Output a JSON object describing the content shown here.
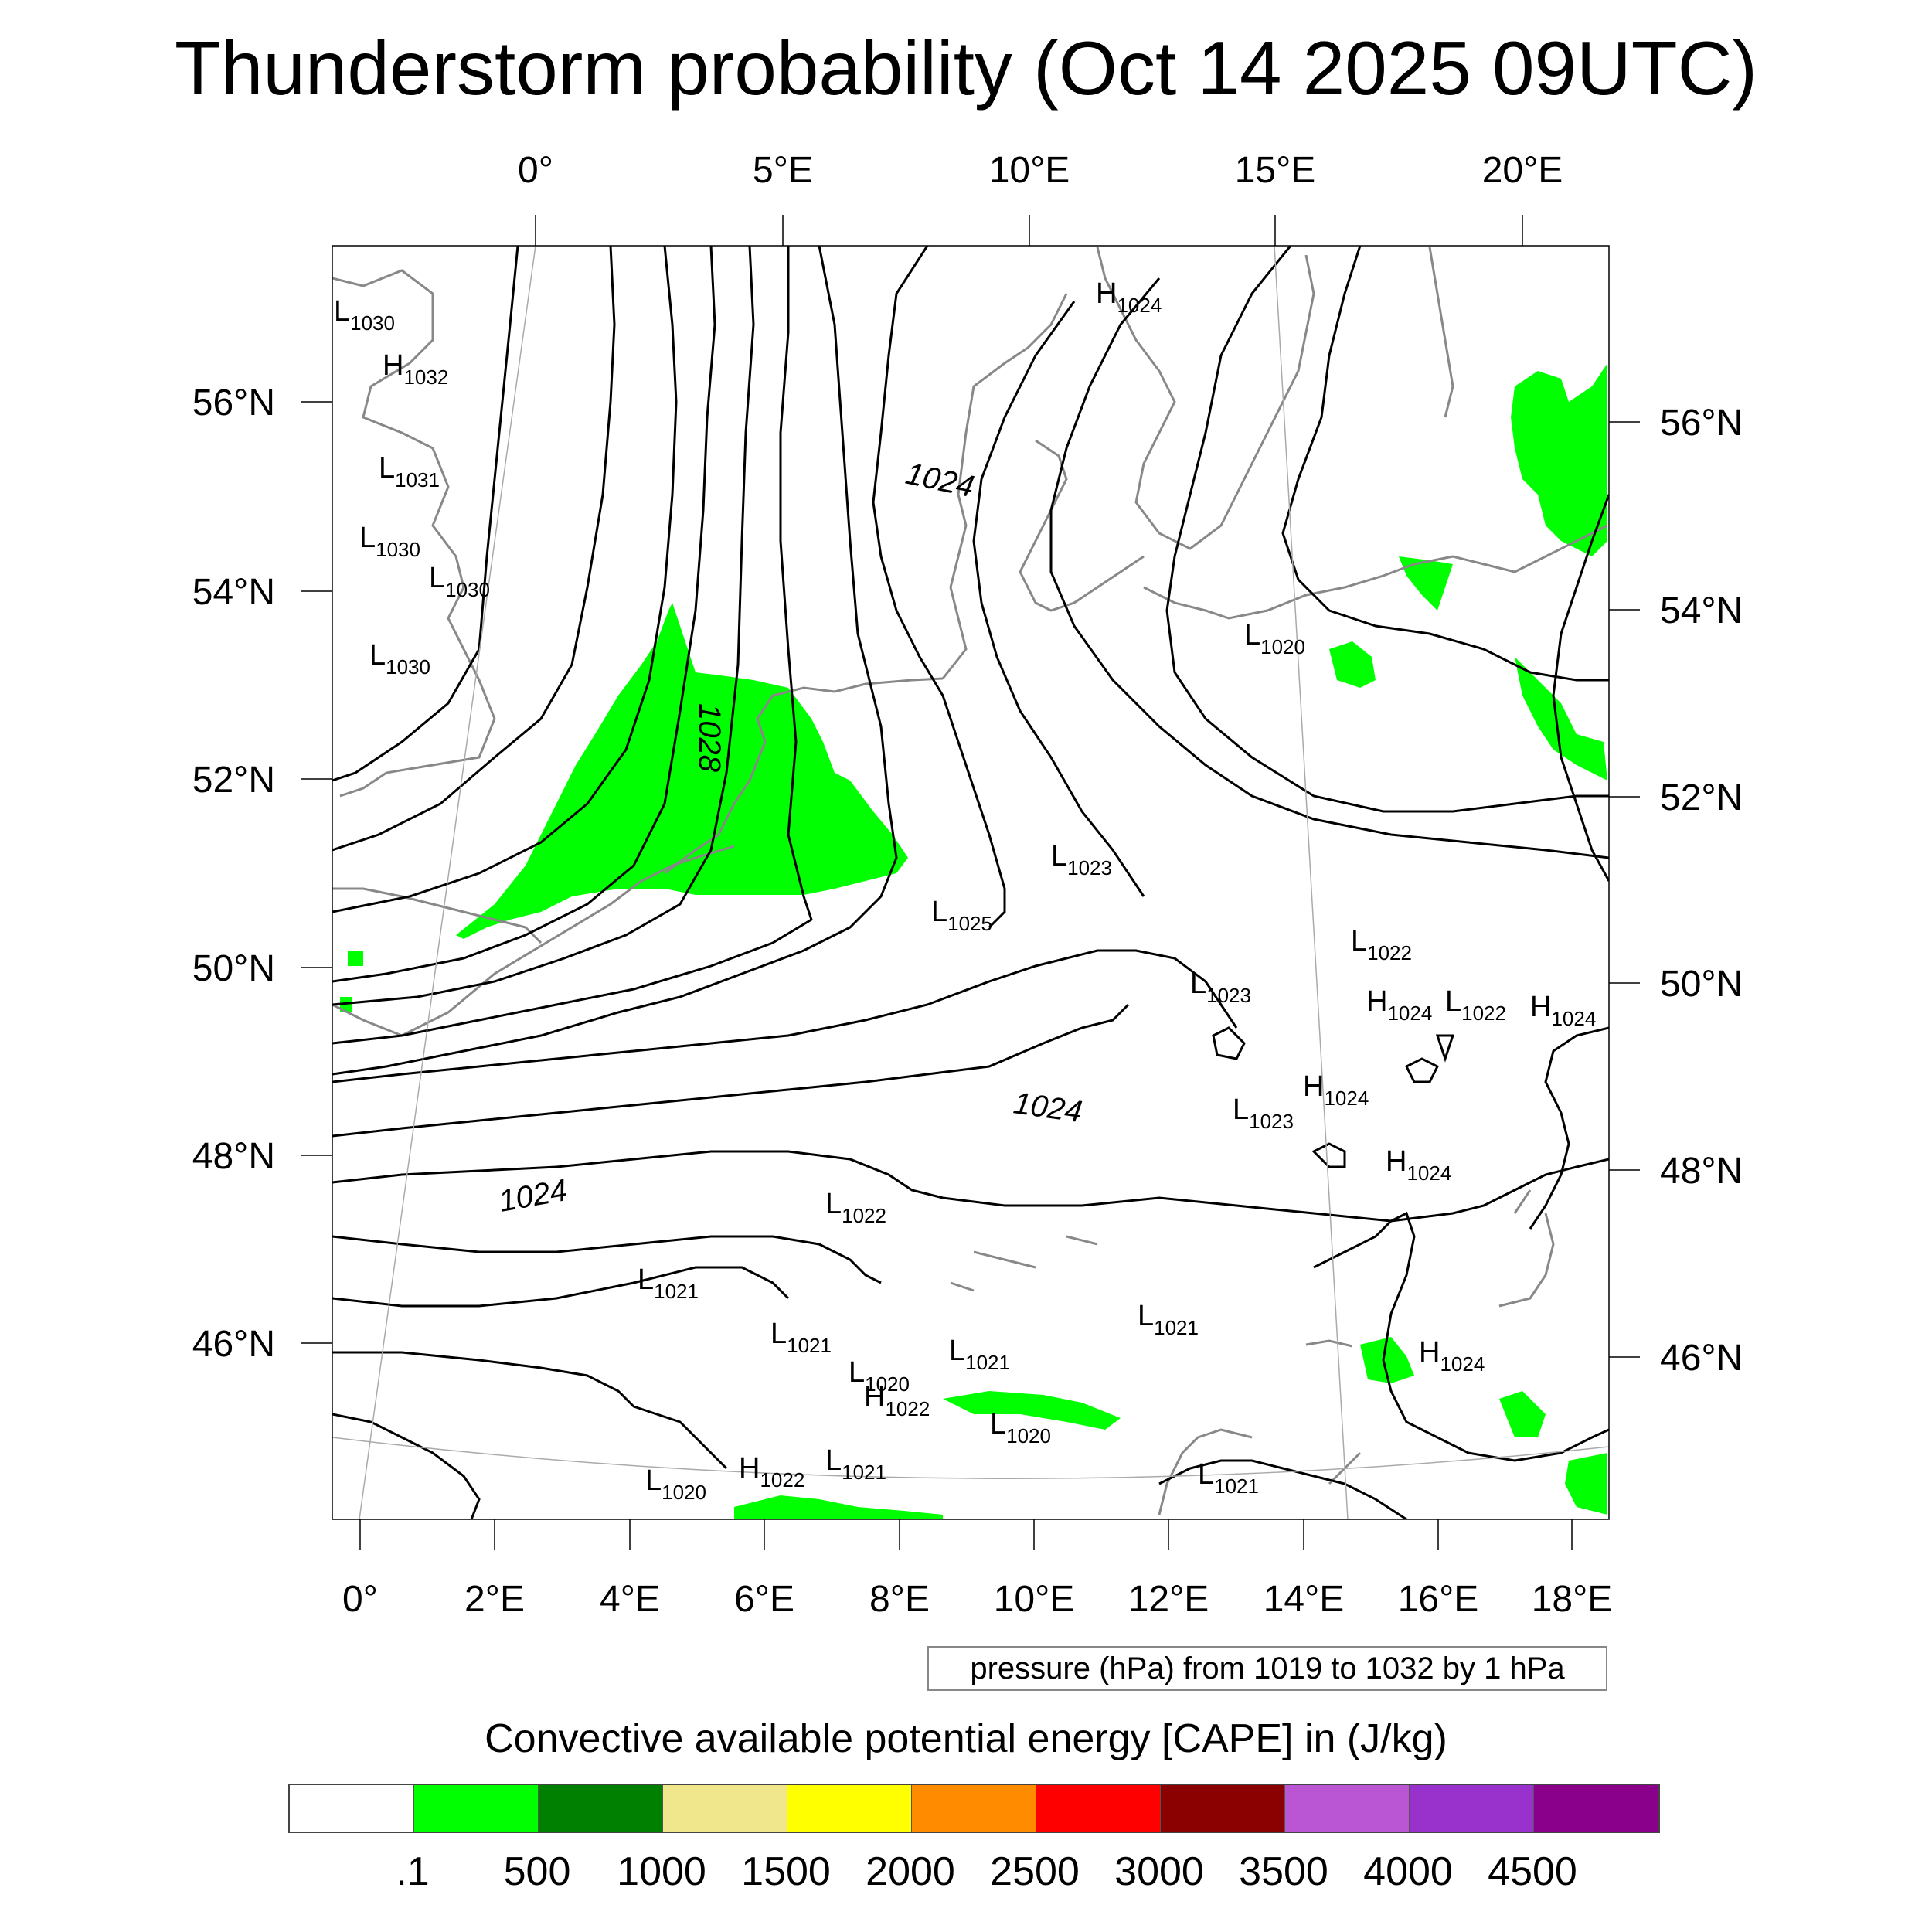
{
  "title": "Thunderstorm probability (Oct 14 2025 09UTC)",
  "top_lon_labels": [
    "0°",
    "5°E",
    "10°E",
    "15°E",
    "20°E"
  ],
  "bottom_lon_labels": [
    "0°",
    "2°E",
    "4°E",
    "6°E",
    "8°E",
    "10°E",
    "12°E",
    "14°E",
    "16°E",
    "18°E"
  ],
  "left_lat_labels": [
    "56°N",
    "54°N",
    "52°N",
    "50°N",
    "48°N",
    "46°N"
  ],
  "right_lat_labels": [
    "56°N",
    "54°N",
    "52°N",
    "50°N",
    "48°N",
    "46°N"
  ],
  "pressure_info": "pressure (hPa) from 1019 to 1032 by 1 hPa",
  "isobar_labels": [
    "1024",
    "1028",
    "1024",
    "1024"
  ],
  "pressure_centers": [
    {
      "type": "L",
      "value": "1030"
    },
    {
      "type": "H",
      "value": "1032"
    },
    {
      "type": "L",
      "value": "1031"
    },
    {
      "type": "L",
      "value": "1030"
    },
    {
      "type": "L",
      "value": "1030"
    },
    {
      "type": "L",
      "value": "1030"
    },
    {
      "type": "H",
      "value": "1024"
    },
    {
      "type": "L",
      "value": "1020"
    },
    {
      "type": "L",
      "value": "1023"
    },
    {
      "type": "L",
      "value": "1025"
    },
    {
      "type": "L",
      "value": "1022"
    },
    {
      "type": "L",
      "value": "1023"
    },
    {
      "type": "H",
      "value": "1024"
    },
    {
      "type": "L",
      "value": "1022"
    },
    {
      "type": "H",
      "value": "1024"
    },
    {
      "type": "H",
      "value": "1024"
    },
    {
      "type": "L",
      "value": "1023"
    },
    {
      "type": "H",
      "value": "1024"
    },
    {
      "type": "L",
      "value": "1022"
    },
    {
      "type": "L",
      "value": "1021"
    },
    {
      "type": "L",
      "value": "1021"
    },
    {
      "type": "L",
      "value": "1020"
    },
    {
      "type": "L",
      "value": "1021"
    },
    {
      "type": "H",
      "value": "1022"
    },
    {
      "type": "L",
      "value": "1021"
    },
    {
      "type": "H",
      "value": "1024"
    },
    {
      "type": "L",
      "value": "1020"
    },
    {
      "type": "L",
      "value": "1020"
    },
    {
      "type": "H",
      "value": "1022"
    },
    {
      "type": "L",
      "value": "1021"
    },
    {
      "type": "L",
      "value": "1021"
    }
  ],
  "legend": {
    "title": "Convective available potential energy [CAPE] in (J/kg)",
    "colors": [
      "#ffffff",
      "#00ff00",
      "#008000",
      "#f0e68c",
      "#ffff00",
      "#ff8c00",
      "#ff0000",
      "#8b0000",
      "#ba55d3",
      "#9932cc",
      "#8b008b"
    ],
    "labels": [
      ".1",
      "500",
      "1000",
      "1500",
      "2000",
      "2500",
      "3000",
      "3500",
      "4000",
      "4500"
    ]
  },
  "colors": {
    "cape_fill": "#00ff00",
    "coastline": "#888888",
    "isobar": "#000000",
    "gridline": "#aaaaaa"
  }
}
